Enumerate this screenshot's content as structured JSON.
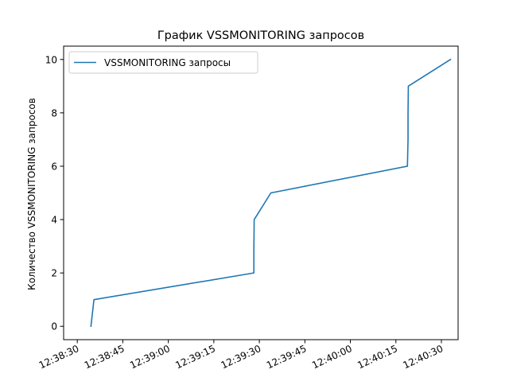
{
  "chart_data": {
    "type": "line",
    "title": "График VSSMONITORING запросов",
    "xlabel": "",
    "ylabel": "Количество VSSMONITORING запросов",
    "x_type": "time",
    "x_ticks": [
      "12:38:30",
      "12:38:45",
      "12:39:00",
      "12:39:15",
      "12:39:30",
      "12:39:45",
      "12:40:00",
      "12:40:15",
      "12:40:30"
    ],
    "y_ticks": [
      0,
      2,
      4,
      6,
      8,
      10
    ],
    "xlim": [
      "12:38:25.5",
      "12:40:35.5"
    ],
    "ylim": [
      -0.5,
      10.5
    ],
    "grid": false,
    "legend": {
      "position": "top-left"
    },
    "series": [
      {
        "name": "VSSMONITORING запросы",
        "color": "#1f77b4",
        "points": [
          {
            "x": "12:38:34.5",
            "y": 0
          },
          {
            "x": "12:38:35.5",
            "y": 1
          },
          {
            "x": "12:39:28.2",
            "y": 2
          },
          {
            "x": "12:39:28.2",
            "y": 3
          },
          {
            "x": "12:39:28.3",
            "y": 4
          },
          {
            "x": "12:39:33.8",
            "y": 5
          },
          {
            "x": "12:40:18.8",
            "y": 6
          },
          {
            "x": "12:40:19.0",
            "y": 7
          },
          {
            "x": "12:40:19.0",
            "y": 8
          },
          {
            "x": "12:40:19.1",
            "y": 9
          },
          {
            "x": "12:40:33.0",
            "y": 10
          }
        ]
      }
    ]
  }
}
